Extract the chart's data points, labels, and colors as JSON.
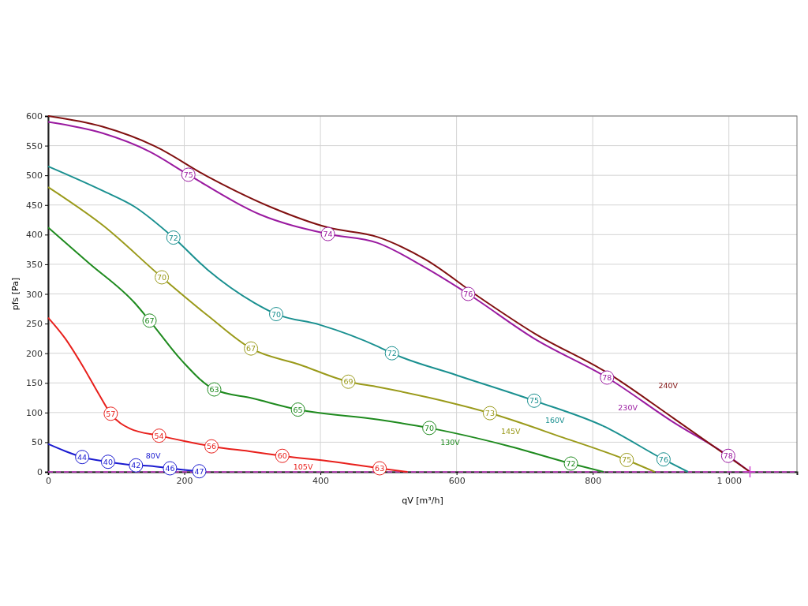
{
  "chart_data": {
    "type": "line",
    "xlabel": "qV [m³/h]",
    "ylabel": "pfs [Pa]",
    "xlim": [
      0,
      1100
    ],
    "xticks": [
      0,
      200,
      400,
      600,
      800,
      {
        "value": 1000,
        "label": "1 000"
      }
    ],
    "ylim": [
      0,
      600
    ],
    "yticks": [
      0,
      50,
      100,
      150,
      200,
      250,
      300,
      350,
      400,
      450,
      500,
      550,
      600
    ],
    "grid": true,
    "legend": false,
    "line_style": "solid",
    "ref_lines": [
      {
        "axis": "y",
        "value": 0,
        "color": "#d040d0",
        "line_style": "dashed"
      }
    ],
    "series": [
      {
        "name": "80V",
        "color": "#1a1ad0",
        "x": [
          0,
          25,
          50,
          88,
          129,
          150,
          179,
          222
        ],
        "values": [
          47,
          35,
          25,
          17,
          11,
          10,
          6,
          1
        ]
      },
      {
        "name": "105V",
        "color": "#e8201c",
        "x": [
          0,
          25,
          50,
          75,
          92,
          120,
          163,
          200,
          240,
          300,
          344,
          420,
          487,
          528
        ],
        "values": [
          260,
          225,
          180,
          130,
          98,
          73,
          61,
          52,
          43,
          34,
          27,
          17,
          6,
          0
        ]
      },
      {
        "name": "130V",
        "color": "#1e8a1e",
        "x": [
          0,
          60,
          127,
          149,
          196,
          244,
          300,
          367,
          485,
          560,
          675,
          768,
          816
        ],
        "values": [
          412,
          352,
          285,
          255,
          188,
          139,
          124,
          105,
          88,
          74,
          44,
          14,
          0
        ]
      },
      {
        "name": "145V",
        "color": "#9a9a1a",
        "x": [
          0,
          80,
          167,
          235,
          298,
          369,
          441,
          485,
          560,
          649,
          756,
          850,
          891
        ],
        "values": [
          480,
          416,
          328,
          263,
          208,
          181,
          152,
          143,
          125,
          99,
          58,
          20,
          0
        ]
      },
      {
        "name": "160V",
        "color": "#1a9090",
        "x": [
          0,
          80,
          127,
          184,
          234,
          303,
          335,
          399,
          485,
          505,
          600,
          714,
          816,
          904,
          940
        ],
        "values": [
          515,
          474,
          447,
          395,
          341,
          285,
          266,
          248,
          211,
          200,
          163,
          120,
          77,
          21,
          0
        ]
      },
      {
        "name": "230V",
        "color": "#9a1aa0",
        "x": [
          0,
          80,
          149,
          206,
          311,
          411,
          484,
          553,
          617,
          715,
          821,
          918,
          999,
          1031
        ],
        "values": [
          590,
          571,
          540,
          501,
          434,
          401,
          386,
          345,
          300,
          224,
          159,
          84,
          27,
          0
        ]
      },
      {
        "name": "240V",
        "color": "#801010",
        "x": [
          0,
          80,
          157,
          234,
          330,
          411,
          484,
          553,
          634,
          715,
          820,
          918,
          1031
        ],
        "values": [
          600,
          582,
          549,
          498,
          445,
          412,
          396,
          359,
          294,
          233,
          168,
          91,
          0
        ]
      },
      {
        "type": "scatter",
        "marker": "cross",
        "color": "#d040d0",
        "x": [
          1031
        ],
        "values": [
          0
        ]
      }
    ],
    "annotations": [
      {
        "text": "44",
        "x": 50,
        "y": 25
      },
      {
        "text": "40",
        "x": 88,
        "y": 17
      },
      {
        "text": "42",
        "x": 129,
        "y": 11
      },
      {
        "text": "46",
        "x": 179,
        "y": 6
      },
      {
        "text": "47",
        "x": 222,
        "y": 1
      },
      {
        "text": "57",
        "x": 92,
        "y": 98
      },
      {
        "text": "54",
        "x": 163,
        "y": 61
      },
      {
        "text": "56",
        "x": 240,
        "y": 43
      },
      {
        "text": "60",
        "x": 344,
        "y": 27
      },
      {
        "text": "63",
        "x": 487,
        "y": 6
      },
      {
        "text": "67",
        "x": 149,
        "y": 255
      },
      {
        "text": "63",
        "x": 244,
        "y": 139
      },
      {
        "text": "65",
        "x": 367,
        "y": 105
      },
      {
        "text": "70",
        "x": 560,
        "y": 74
      },
      {
        "text": "72",
        "x": 768,
        "y": 14
      },
      {
        "text": "70",
        "x": 167,
        "y": 328
      },
      {
        "text": "67",
        "x": 298,
        "y": 208
      },
      {
        "text": "69",
        "x": 441,
        "y": 152
      },
      {
        "text": "73",
        "x": 649,
        "y": 99
      },
      {
        "text": "75",
        "x": 850,
        "y": 20
      },
      {
        "text": "72",
        "x": 184,
        "y": 395
      },
      {
        "text": "70",
        "x": 335,
        "y": 266
      },
      {
        "text": "72",
        "x": 505,
        "y": 200
      },
      {
        "text": "75",
        "x": 714,
        "y": 120
      },
      {
        "text": "76",
        "x": 904,
        "y": 21
      },
      {
        "text": "75",
        "x": 206,
        "y": 501
      },
      {
        "text": "74",
        "x": 411,
        "y": 401
      },
      {
        "text": "76",
        "x": 617,
        "y": 300
      },
      {
        "text": "78",
        "x": 821,
        "y": 159
      },
      {
        "text": "78",
        "x": 999,
        "y": 27
      }
    ]
  }
}
